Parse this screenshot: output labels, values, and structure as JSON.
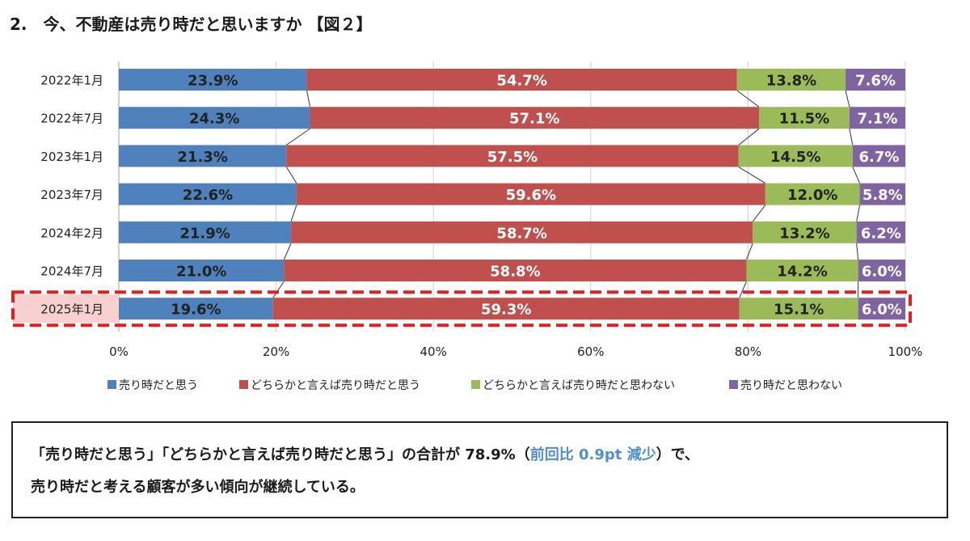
{
  "title": "2.　今、不動産は売り時だと思いますか 【図２】",
  "chart_data": {
    "type": "bar",
    "orientation": "horizontal",
    "stacked": true,
    "percent_stacked": true,
    "categories": [
      "2022年1月",
      "2022年7月",
      "2023年1月",
      "2023年7月",
      "2024年2月",
      "2024年7月",
      "2025年1月"
    ],
    "series": [
      {
        "name": "売り時だと思う",
        "color": "#4f81bd",
        "values": [
          23.9,
          24.3,
          21.3,
          22.6,
          21.9,
          21.0,
          19.6
        ],
        "labels": [
          "23.9%",
          "24.3%",
          "21.3%",
          "22.6%",
          "21.9%",
          "21.0%",
          "19.6%"
        ]
      },
      {
        "name": "どちらかと言えば売り時だと思う",
        "color": "#c0504d",
        "values": [
          54.7,
          57.1,
          57.5,
          59.6,
          58.7,
          58.8,
          59.3
        ],
        "labels": [
          "54.7%",
          "57.1%",
          "57.5%",
          "59.6%",
          "58.7%",
          "58.8%",
          "59.3%"
        ]
      },
      {
        "name": "どちらかと言えば売り時だと思わない",
        "color": "#9bbb59",
        "values": [
          13.8,
          11.5,
          14.5,
          12.0,
          13.2,
          14.2,
          15.1
        ],
        "labels": [
          "13.8%",
          "11.5%",
          "14.5%",
          "12.0%",
          "13.2%",
          "14.2%",
          "15.1%"
        ]
      },
      {
        "name": "売り時だと思わない",
        "color": "#8064a2",
        "values": [
          7.6,
          7.1,
          6.7,
          5.8,
          6.2,
          6.0,
          6.0
        ],
        "labels": [
          "7.6%",
          "7.1%",
          "6.7%",
          "5.8%",
          "6.2%",
          "6.0%",
          "6.0%"
        ]
      }
    ],
    "xlim": [
      0,
      100
    ],
    "x_ticks": [
      "0%",
      "20%",
      "40%",
      "60%",
      "80%",
      "100%"
    ],
    "grid": true,
    "legend_position": "bottom",
    "highlighted_category": "2025年1月",
    "highlight_color": "#e02020"
  },
  "summary": {
    "line1_pre": "「売り時だと思う」「どちらかと言えば売り時だと思う」の合計が 78.9%（",
    "line1_accent": "前回比 0.9pt 減少",
    "line1_post": "）で、",
    "line2": "売り時だと考える顧客が多い傾向が継続している。"
  }
}
